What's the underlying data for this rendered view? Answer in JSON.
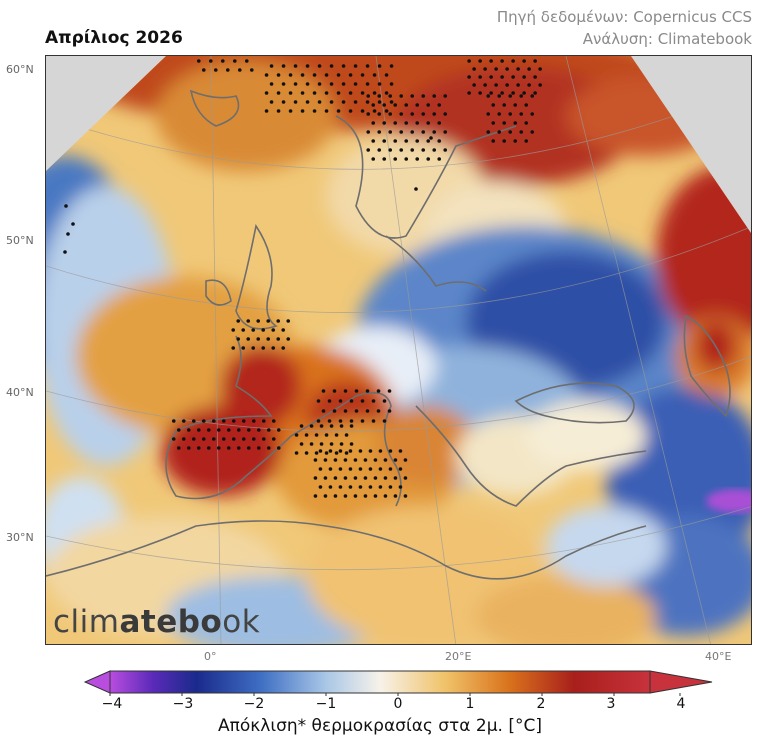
{
  "title": "Απρίλιος 2026",
  "credits": {
    "source": "Πηγή δεδομένων: Copernicus CCS",
    "analysis": "Ανάλυση: Climatebook"
  },
  "watermark": {
    "light": "clim",
    "bold": "atebo",
    "tail": "ok"
  },
  "lat_labels": [
    "60°N",
    "50°N",
    "40°N",
    "30°N"
  ],
  "lon_labels": [
    "0°",
    "20°E",
    "40°E"
  ],
  "colorbar": {
    "ticks": [
      "−4",
      "−3",
      "−2",
      "−1",
      "0",
      "1",
      "2",
      "3",
      "4"
    ],
    "label": "Απόκλιση* θερμοκρασίας στα 2μ. [°C]",
    "colors": {
      "min": "#b94de0",
      "cold_deep": "#1a2a8c",
      "cold": "#3f6fc4",
      "cool": "#a9c7e6",
      "neutral": "#f7f2ea",
      "warm": "#f0c36a",
      "hot": "#d9721c",
      "very_hot": "#b1241c",
      "max": "#c8323c"
    }
  }
}
